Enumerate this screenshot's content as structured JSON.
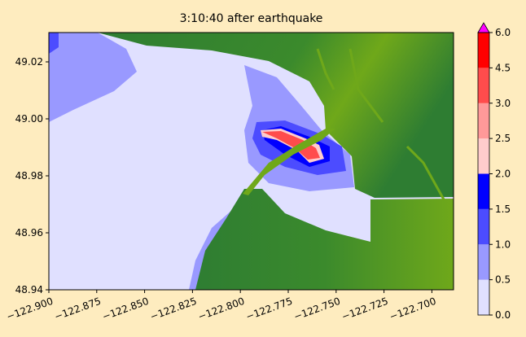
{
  "title": "3:10:40 after earthquake",
  "map": {
    "x_ticks": [
      "−122.900",
      "−122.875",
      "−122.850",
      "−122.825",
      "−122.800",
      "−122.775",
      "−122.750",
      "−122.725",
      "−122.700"
    ],
    "y_ticks": [
      "49.02",
      "49.00",
      "48.98",
      "48.96",
      "48.94"
    ],
    "xlim": [
      -122.9,
      -122.69
    ],
    "ylim": [
      48.94,
      49.03
    ]
  },
  "colorbar": {
    "ticks": [
      "6.0",
      "4.5",
      "3.0",
      "2.5",
      "2.0",
      "1.5",
      "1.0",
      "0.5",
      "0.0"
    ],
    "levels": [
      0.0,
      0.5,
      1.0,
      1.5,
      2.0,
      2.5,
      3.0,
      4.5,
      6.0
    ],
    "colors": [
      "#e0e0ff",
      "#9999ff",
      "#4c4cff",
      "#0000ff",
      "#ffcccc",
      "#ff9999",
      "#ff4c4c",
      "#ff0000"
    ],
    "extend_color": "#ff00ff",
    "extend": "max"
  },
  "colors": {
    "land_dark": "#2e7d32",
    "land_light": "#6fa81a",
    "background": "#feecbf"
  }
}
